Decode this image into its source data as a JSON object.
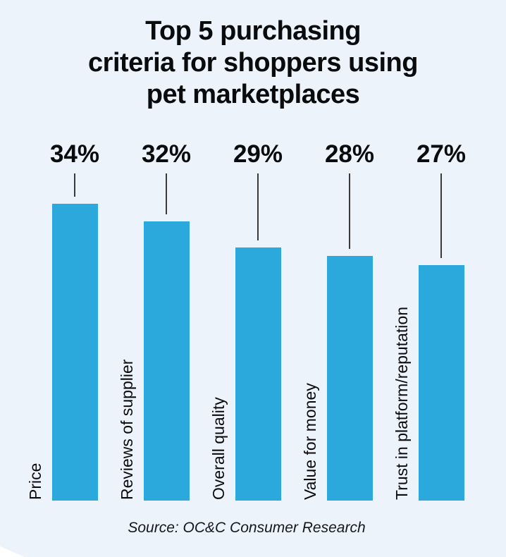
{
  "page": {
    "background_color": "#ffffff",
    "card_color": "#EDF3FB"
  },
  "title": {
    "full": "Top 5 purchasing criteria for shoppers using pet marketplaces",
    "lines": [
      "Top 5 purchasing",
      "criteria for shoppers using",
      "pet marketplaces"
    ]
  },
  "source": {
    "label": "Source: OC&C Consumer Research"
  },
  "chart_data": {
    "type": "bar",
    "title": "Top 5 purchasing criteria for shoppers using pet marketplaces",
    "categories": [
      "Price",
      "Reviews of supplier",
      "Overall quality",
      "Value for money",
      "Trust in platform/reputation"
    ],
    "values": [
      34,
      32,
      29,
      28,
      27
    ],
    "value_labels": [
      "34%",
      "32%",
      "29%",
      "28%",
      "27%"
    ],
    "unit": "%",
    "orientation": "vertical",
    "bar_color": "#2BA8DC",
    "label_color": "#0A0B0D",
    "connector_line_color": "#3A3A3A",
    "value_label_position": "above-bars-with-connector-line",
    "category_label_rotation": -90,
    "ylim": [
      0,
      40
    ],
    "grid": false,
    "legend": false,
    "axes_shown": false,
    "source": "Source: OC&C Consumer Research"
  }
}
